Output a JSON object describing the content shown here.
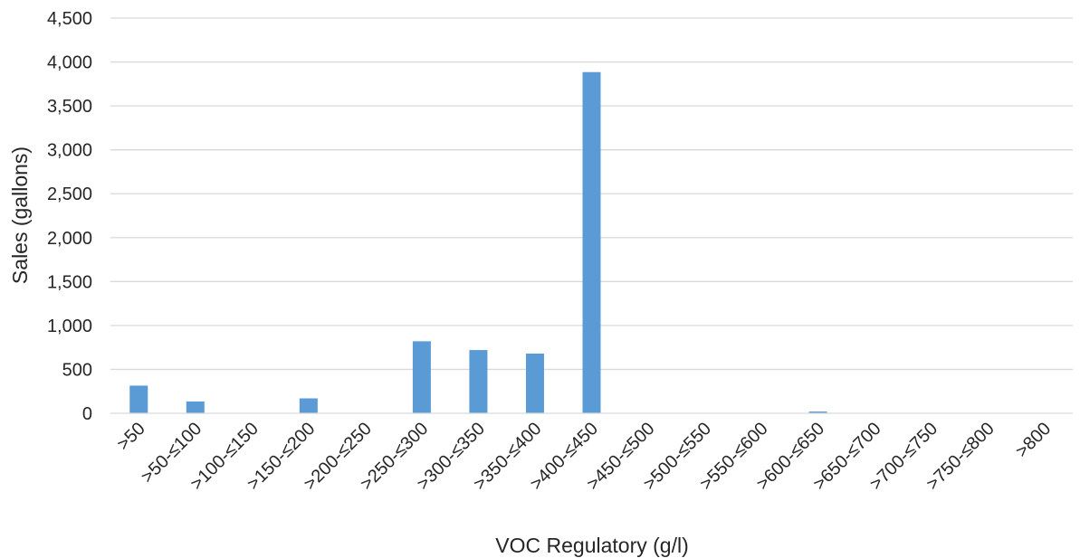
{
  "chart_data": {
    "type": "bar",
    "title": "",
    "xlabel": "VOC Regulatory (g/l)",
    "ylabel": "Sales (gallons)",
    "ylim": [
      0,
      4500
    ],
    "ytick_step": 500,
    "yticks": [
      "0",
      "500",
      "1,000",
      "1,500",
      "2,000",
      "2,500",
      "3,000",
      "3,500",
      "4,000",
      "4,500"
    ],
    "grid": true,
    "legend": "none",
    "bar_color": "#5b9bd5",
    "categories": [
      ">50",
      ">50-≤100",
      ">100-≤150",
      ">150-≤200",
      ">200-≤250",
      ">250-≤300",
      ">300-≤350",
      ">350-≤400",
      ">400-≤450",
      ">450-≤500",
      ">500-≤550",
      ">550-≤600",
      ">600-≤650",
      ">650-≤700",
      ">700-≤750",
      ">750-≤800",
      ">800"
    ],
    "values": [
      315,
      135,
      0,
      170,
      0,
      820,
      720,
      680,
      3885,
      0,
      0,
      0,
      20,
      0,
      0,
      0,
      0
    ]
  }
}
